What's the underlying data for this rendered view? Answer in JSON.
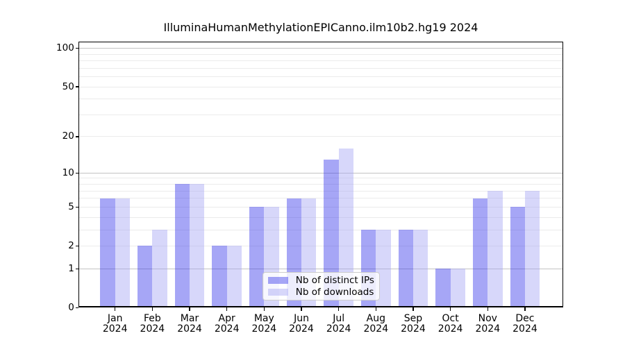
{
  "chart_data": {
    "type": "bar",
    "title": "IlluminaHumanMethylationEPICanno.ilm10b2.hg19 2024",
    "yscale": "log1p",
    "ylim": [
      0,
      113
    ],
    "yticks": [
      0,
      1,
      2,
      5,
      10,
      20,
      50,
      100
    ],
    "grid_major": [
      1,
      10,
      100
    ],
    "grid_minor": [
      2,
      3,
      4,
      5,
      6,
      7,
      8,
      9,
      20,
      30,
      40,
      50,
      60,
      70,
      80,
      90
    ],
    "grid_on": true,
    "legend_position": "lower-center-inside",
    "categories": [
      {
        "month": "Jan",
        "year": "2024"
      },
      {
        "month": "Feb",
        "year": "2024"
      },
      {
        "month": "Mar",
        "year": "2024"
      },
      {
        "month": "Apr",
        "year": "2024"
      },
      {
        "month": "May",
        "year": "2024"
      },
      {
        "month": "Jun",
        "year": "2024"
      },
      {
        "month": "Jul",
        "year": "2024"
      },
      {
        "month": "Aug",
        "year": "2024"
      },
      {
        "month": "Sep",
        "year": "2024"
      },
      {
        "month": "Oct",
        "year": "2024"
      },
      {
        "month": "Nov",
        "year": "2024"
      },
      {
        "month": "Dec",
        "year": "2024"
      }
    ],
    "series": [
      {
        "name": "Nb of distinct IPs",
        "color": "rgba(53,53,234,0.44)",
        "values": [
          6,
          2,
          8,
          2,
          5,
          6,
          13,
          3,
          3,
          1,
          6,
          5
        ]
      },
      {
        "name": "Nb of downloads",
        "color": "rgba(164,164,244,0.44)",
        "values": [
          6,
          3,
          8,
          2,
          5,
          6,
          16,
          3,
          3,
          1,
          7,
          7
        ]
      }
    ],
    "colors": {
      "grid_major": "#c3c3c3",
      "grid_minor": "#ebebeb",
      "axis": "#000000",
      "text": "#000000",
      "legend_border": "#cccccc",
      "background": "#ffffff"
    }
  }
}
